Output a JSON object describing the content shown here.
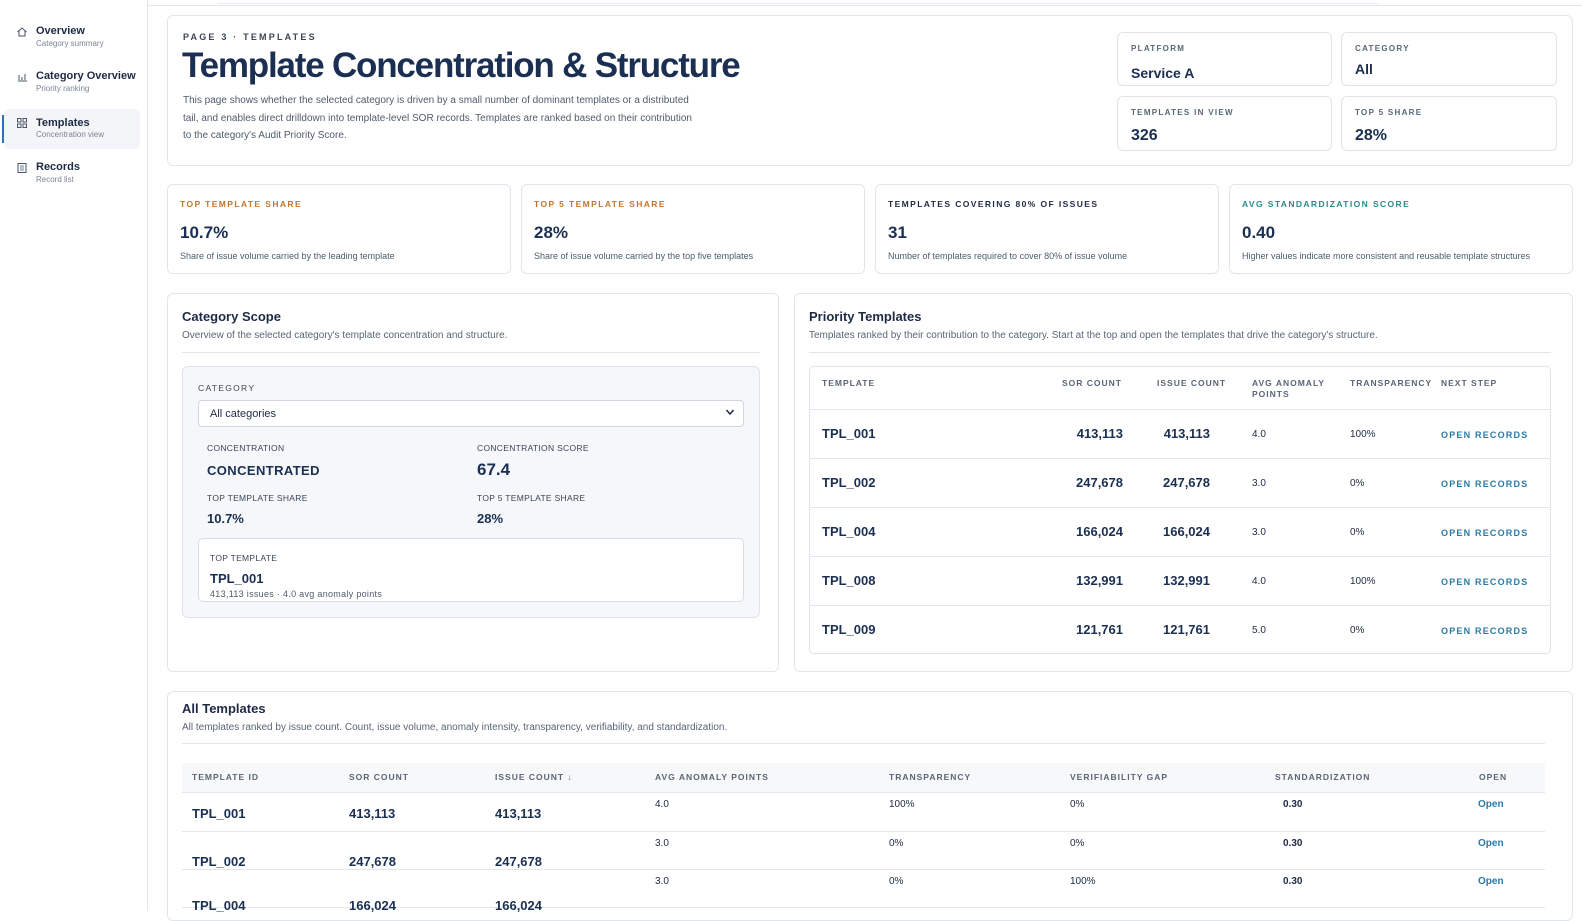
{
  "sidebar": {
    "items": [
      {
        "label": "Overview",
        "sub": "Category summary"
      },
      {
        "label": "Category Overview",
        "sub": "Priority ranking"
      },
      {
        "label": "Templates",
        "sub": "Concentration view"
      },
      {
        "label": "Records",
        "sub": "Record list"
      }
    ]
  },
  "header": {
    "eyebrow": "PAGE 3 · TEMPLATES",
    "title": "Template Concentration & Structure",
    "description": "This page shows whether the selected category is driven by a small number of dominant templates or a distributed tail, and enables direct drilldown into template-level SOR records. Templates are ranked based on their contribution to the category's Audit Priority Score.",
    "platform_label": "PLATFORM",
    "platform_value": "Service A",
    "category_label": "CATEGORY",
    "category_value": "All",
    "templates_label": "TEMPLATES IN VIEW",
    "templates_value": "326",
    "top5_label": "TOP 5 SHARE",
    "top5_value": "28%"
  },
  "metrics": [
    {
      "label": "TOP TEMPLATE SHARE",
      "value": "10.7%",
      "desc": "Share of issue volume carried by the leading template",
      "color": "#c0762f"
    },
    {
      "label": "TOP 5 TEMPLATE SHARE",
      "value": "28%",
      "desc": "Share of issue volume carried by the top five templates",
      "color": "#c0762f"
    },
    {
      "label": "TEMPLATES COVERING 80% OF ISSUES",
      "value": "31",
      "desc": "Number of templates required to cover 80% of issue volume",
      "color": "#1e2a44"
    },
    {
      "label": "AVG STANDARDIZATION SCORE",
      "value": "0.40",
      "desc": "Higher values indicate more consistent and reusable template structures",
      "color": "#2a8a8a"
    }
  ],
  "scope": {
    "title": "Category Scope",
    "desc": "Overview of the selected category's template concentration and structure.",
    "category_label": "CATEGORY",
    "category_select": "All categories",
    "concentration_label": "CONCENTRATION",
    "concentration_value": "CONCENTRATED",
    "score_label": "CONCENTRATION SCORE",
    "score_value": "67.4",
    "top_share_label": "TOP TEMPLATE SHARE",
    "top_share_value": "10.7%",
    "top5_share_label": "TOP 5 TEMPLATE SHARE",
    "top5_share_value": "28%",
    "top_template_label": "TOP TEMPLATE",
    "top_template_value": "TPL_001",
    "top_template_meta": "413,113 issues · 4.0 avg anomaly points"
  },
  "priority": {
    "title": "Priority Templates",
    "desc": "Templates ranked by their contribution to the category. Start at the top and open the templates that drive the category's structure.",
    "headers": [
      "TEMPLATE",
      "SOR COUNT",
      "ISSUE COUNT",
      "AVG ANOMALY POINTS",
      "TRANSPARENCY",
      "NEXT STEP"
    ],
    "rows": [
      {
        "id": "TPL_001",
        "sor": "413,113",
        "issue": "413,113",
        "anom": "4.0",
        "trans": "100%",
        "action": "OPEN RECORDS"
      },
      {
        "id": "TPL_002",
        "sor": "247,678",
        "issue": "247,678",
        "anom": "3.0",
        "trans": "0%",
        "action": "OPEN RECORDS"
      },
      {
        "id": "TPL_004",
        "sor": "166,024",
        "issue": "166,024",
        "anom": "3.0",
        "trans": "0%",
        "action": "OPEN RECORDS"
      },
      {
        "id": "TPL_008",
        "sor": "132,991",
        "issue": "132,991",
        "anom": "4.0",
        "trans": "100%",
        "action": "OPEN RECORDS"
      },
      {
        "id": "TPL_009",
        "sor": "121,761",
        "issue": "121,761",
        "anom": "5.0",
        "trans": "0%",
        "action": "OPEN RECORDS"
      }
    ]
  },
  "all": {
    "title": "All Templates",
    "desc": "All templates ranked by issue count. Count, issue volume, anomaly intensity, transparency, verifiability, and standardization.",
    "headers": [
      "TEMPLATE ID",
      "SOR COUNT",
      "ISSUE COUNT ↓",
      "AVG ANOMALY POINTS",
      "TRANSPARENCY",
      "VERIFIABILITY GAP",
      "STANDARDIZATION",
      "OPEN"
    ],
    "rows": [
      {
        "id": "TPL_001",
        "sor": "413,113",
        "issue": "413,113",
        "anom": "4.0",
        "trans": "100%",
        "gap": "0%",
        "std": "0.30",
        "open": "Open"
      },
      {
        "id": "TPL_002",
        "sor": "247,678",
        "issue": "247,678",
        "anom": "3.0",
        "trans": "0%",
        "gap": "0%",
        "std": "0.30",
        "open": "Open"
      },
      {
        "id": "TPL_004",
        "sor": "166,024",
        "issue": "166,024",
        "anom": "3.0",
        "trans": "0%",
        "gap": "100%",
        "std": "0.30",
        "open": "Open"
      }
    ]
  }
}
